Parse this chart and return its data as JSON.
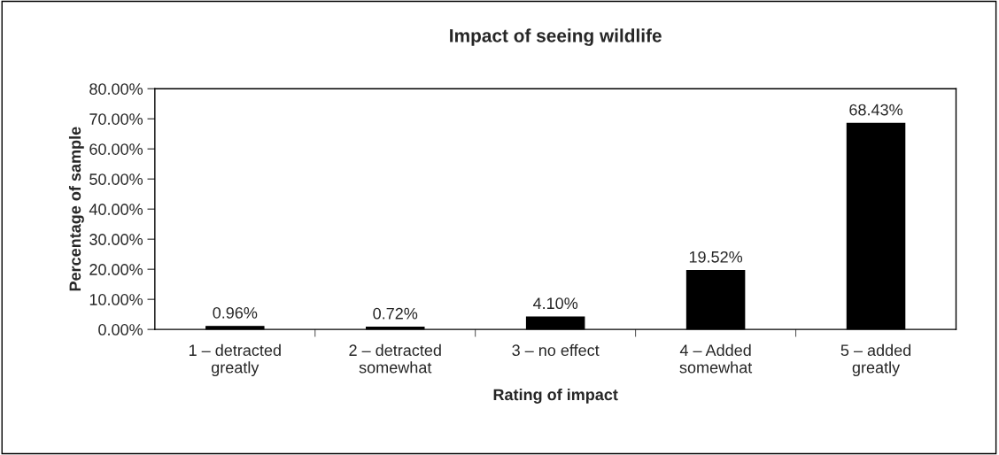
{
  "chart_data": {
    "type": "bar",
    "title": "Impact of seeing wildlife",
    "xlabel": "Rating of impact",
    "ylabel": "Percentage of sample",
    "categories": [
      "1 – detracted\ngreatly",
      "2 – detracted\nsomewhat",
      "3 – no effect",
      "4 – Added\nsomewhat",
      "5 – added\ngreatly"
    ],
    "values": [
      0.96,
      0.72,
      4.1,
      19.52,
      68.43
    ],
    "value_labels": [
      "0.96%",
      "0.72%",
      "4.10%",
      "19.52%",
      "68.43%"
    ],
    "color": "#000000",
    "ylim": [
      0,
      80
    ],
    "yticks": [
      {
        "value": 0,
        "label": "0.00%"
      },
      {
        "value": 10,
        "label": "10.00%"
      },
      {
        "value": 20,
        "label": "20.00%"
      },
      {
        "value": 30,
        "label": "30.00%"
      },
      {
        "value": 40,
        "label": "40.00%"
      },
      {
        "value": 50,
        "label": "50.00%"
      },
      {
        "value": 60,
        "label": "60.00%"
      },
      {
        "value": 70,
        "label": "70.00%"
      },
      {
        "value": 80,
        "label": "80.00%"
      }
    ],
    "grid": false,
    "legend": false
  }
}
